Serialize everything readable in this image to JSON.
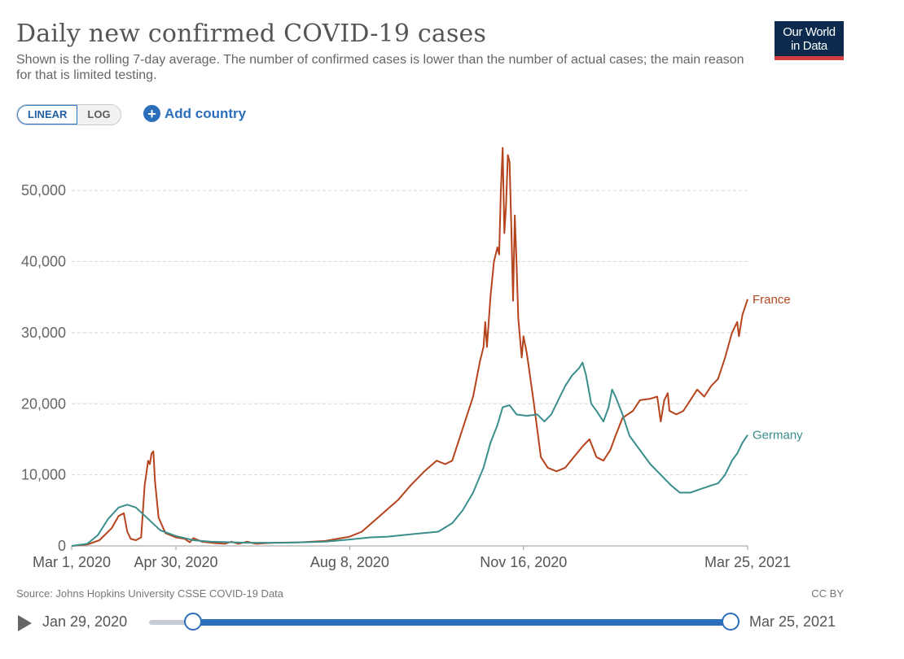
{
  "header": {
    "title": "Daily new confirmed COVID-19 cases",
    "subtitle": "Shown is the rolling 7-day average. The number of confirmed cases is lower than the number of actual cases; the main reason for that is limited testing.",
    "logo_line1": "Our World",
    "logo_line2": "in Data"
  },
  "controls": {
    "linear_label": "LINEAR",
    "log_label": "LOG",
    "add_country_label": "Add country"
  },
  "footer": {
    "source": "Source: Johns Hopkins University CSSE COVID-19 Data",
    "license": "CC BY"
  },
  "timeline": {
    "start_label": "Jan 29, 2020",
    "end_label": "Mar 25, 2021"
  },
  "colors": {
    "france": "#b5441d",
    "germany": "#3a8e8c",
    "accent": "#2a6ebc"
  },
  "chart_data": {
    "type": "line",
    "title": "Daily new confirmed COVID-19 cases",
    "x_range": [
      "2020-03-01",
      "2021-03-25"
    ],
    "x_tick_labels": [
      {
        "date": "2020-03-01",
        "label": "Mar 1, 2020"
      },
      {
        "date": "2020-04-30",
        "label": "Apr 30, 2020"
      },
      {
        "date": "2020-08-08",
        "label": "Aug 8, 2020"
      },
      {
        "date": "2020-11-16",
        "label": "Nov 16, 2020"
      },
      {
        "date": "2021-03-25",
        "label": "Mar 25, 2021"
      }
    ],
    "ylim": [
      0,
      56000
    ],
    "y_ticks": [
      {
        "value": 0,
        "label": "0"
      },
      {
        "value": 10000,
        "label": "10,000"
      },
      {
        "value": 20000,
        "label": "20,000"
      },
      {
        "value": 30000,
        "label": "30,000"
      },
      {
        "value": 40000,
        "label": "40,000"
      },
      {
        "value": 50000,
        "label": "50,000"
      }
    ],
    "grid": "horizontal-dashed",
    "legend": "line-end-labels",
    "series": [
      {
        "name": "France",
        "points": [
          [
            "2020-03-01",
            0
          ],
          [
            "2020-03-10",
            200
          ],
          [
            "2020-03-17",
            800
          ],
          [
            "2020-03-24",
            2500
          ],
          [
            "2020-03-28",
            4200
          ],
          [
            "2020-03-31",
            4600
          ],
          [
            "2020-04-02",
            2000
          ],
          [
            "2020-04-04",
            1000
          ],
          [
            "2020-04-07",
            800
          ],
          [
            "2020-04-10",
            1200
          ],
          [
            "2020-04-12",
            8500
          ],
          [
            "2020-04-14",
            12000
          ],
          [
            "2020-04-15",
            11500
          ],
          [
            "2020-04-16",
            13000
          ],
          [
            "2020-04-17",
            13300
          ],
          [
            "2020-04-18",
            9000
          ],
          [
            "2020-04-20",
            4000
          ],
          [
            "2020-04-24",
            1800
          ],
          [
            "2020-04-30",
            1200
          ],
          [
            "2020-05-05",
            1000
          ],
          [
            "2020-05-08",
            500
          ],
          [
            "2020-05-10",
            1100
          ],
          [
            "2020-05-15",
            600
          ],
          [
            "2020-05-22",
            400
          ],
          [
            "2020-05-28",
            300
          ],
          [
            "2020-06-01",
            600
          ],
          [
            "2020-06-05",
            300
          ],
          [
            "2020-06-10",
            600
          ],
          [
            "2020-06-15",
            300
          ],
          [
            "2020-06-25",
            450
          ],
          [
            "2020-07-10",
            500
          ],
          [
            "2020-07-25",
            700
          ],
          [
            "2020-08-08",
            1300
          ],
          [
            "2020-08-15",
            2000
          ],
          [
            "2020-08-22",
            3500
          ],
          [
            "2020-08-29",
            5000
          ],
          [
            "2020-09-05",
            6500
          ],
          [
            "2020-09-12",
            8500
          ],
          [
            "2020-09-20",
            10500
          ],
          [
            "2020-09-27",
            12000
          ],
          [
            "2020-10-02",
            11500
          ],
          [
            "2020-10-06",
            12000
          ],
          [
            "2020-10-12",
            16500
          ],
          [
            "2020-10-18",
            21000
          ],
          [
            "2020-10-22",
            26000
          ],
          [
            "2020-10-24",
            28000
          ],
          [
            "2020-10-25",
            31500
          ],
          [
            "2020-10-26",
            28000
          ],
          [
            "2020-10-28",
            35000
          ],
          [
            "2020-10-30",
            40000
          ],
          [
            "2020-11-01",
            42000
          ],
          [
            "2020-11-02",
            41000
          ],
          [
            "2020-11-03",
            50000
          ],
          [
            "2020-11-04",
            56000
          ],
          [
            "2020-11-05",
            44000
          ],
          [
            "2020-11-06",
            48000
          ],
          [
            "2020-11-07",
            55000
          ],
          [
            "2020-11-08",
            54000
          ],
          [
            "2020-11-09",
            45000
          ],
          [
            "2020-11-10",
            34500
          ],
          [
            "2020-11-11",
            46500
          ],
          [
            "2020-11-12",
            40000
          ],
          [
            "2020-11-13",
            32000
          ],
          [
            "2020-11-15",
            26500
          ],
          [
            "2020-11-16",
            29500
          ],
          [
            "2020-11-18",
            27000
          ],
          [
            "2020-11-22",
            20000
          ],
          [
            "2020-11-26",
            12500
          ],
          [
            "2020-11-30",
            11000
          ],
          [
            "2020-12-05",
            10500
          ],
          [
            "2020-12-10",
            11000
          ],
          [
            "2020-12-15",
            12500
          ],
          [
            "2020-12-20",
            14000
          ],
          [
            "2020-12-24",
            15000
          ],
          [
            "2020-12-28",
            12500
          ],
          [
            "2021-01-01",
            12000
          ],
          [
            "2021-01-05",
            13500
          ],
          [
            "2021-01-08",
            15500
          ],
          [
            "2021-01-12",
            18000
          ],
          [
            "2021-01-18",
            19000
          ],
          [
            "2021-01-22",
            20500
          ],
          [
            "2021-01-28",
            20700
          ],
          [
            "2021-02-01",
            21000
          ],
          [
            "2021-02-03",
            17500
          ],
          [
            "2021-02-05",
            20500
          ],
          [
            "2021-02-07",
            21500
          ],
          [
            "2021-02-08",
            19000
          ],
          [
            "2021-02-12",
            18500
          ],
          [
            "2021-02-16",
            19000
          ],
          [
            "2021-02-20",
            20500
          ],
          [
            "2021-02-24",
            22000
          ],
          [
            "2021-02-28",
            21000
          ],
          [
            "2021-03-04",
            22500
          ],
          [
            "2021-03-08",
            23500
          ],
          [
            "2021-03-12",
            26500
          ],
          [
            "2021-03-16",
            30000
          ],
          [
            "2021-03-19",
            31500
          ],
          [
            "2021-03-20",
            29500
          ],
          [
            "2021-03-22",
            32500
          ],
          [
            "2021-03-25",
            34700
          ]
        ]
      },
      {
        "name": "Germany",
        "points": [
          [
            "2020-03-01",
            0
          ],
          [
            "2020-03-10",
            300
          ],
          [
            "2020-03-16",
            1500
          ],
          [
            "2020-03-22",
            3800
          ],
          [
            "2020-03-28",
            5400
          ],
          [
            "2020-04-02",
            5800
          ],
          [
            "2020-04-07",
            5400
          ],
          [
            "2020-04-14",
            3800
          ],
          [
            "2020-04-21",
            2200
          ],
          [
            "2020-04-30",
            1400
          ],
          [
            "2020-05-10",
            800
          ],
          [
            "2020-05-20",
            600
          ],
          [
            "2020-06-10",
            450
          ],
          [
            "2020-07-01",
            450
          ],
          [
            "2020-07-25",
            600
          ],
          [
            "2020-08-08",
            900
          ],
          [
            "2020-08-20",
            1200
          ],
          [
            "2020-08-30",
            1300
          ],
          [
            "2020-09-15",
            1700
          ],
          [
            "2020-09-28",
            2000
          ],
          [
            "2020-10-06",
            3200
          ],
          [
            "2020-10-12",
            5000
          ],
          [
            "2020-10-18",
            7500
          ],
          [
            "2020-10-24",
            11000
          ],
          [
            "2020-10-28",
            14500
          ],
          [
            "2020-11-01",
            17000
          ],
          [
            "2020-11-04",
            19500
          ],
          [
            "2020-11-08",
            19800
          ],
          [
            "2020-11-12",
            18500
          ],
          [
            "2020-11-18",
            18300
          ],
          [
            "2020-11-24",
            18500
          ],
          [
            "2020-11-28",
            17500
          ],
          [
            "2020-12-02",
            18500
          ],
          [
            "2020-12-06",
            20500
          ],
          [
            "2020-12-10",
            22500
          ],
          [
            "2020-12-14",
            24000
          ],
          [
            "2020-12-18",
            25000
          ],
          [
            "2020-12-20",
            25800
          ],
          [
            "2020-12-22",
            24000
          ],
          [
            "2020-12-25",
            20000
          ],
          [
            "2020-12-28",
            19000
          ],
          [
            "2021-01-01",
            17500
          ],
          [
            "2021-01-04",
            19500
          ],
          [
            "2021-01-06",
            22000
          ],
          [
            "2021-01-08",
            21000
          ],
          [
            "2021-01-12",
            18500
          ],
          [
            "2021-01-16",
            15500
          ],
          [
            "2021-01-22",
            13500
          ],
          [
            "2021-01-28",
            11500
          ],
          [
            "2021-02-03",
            10000
          ],
          [
            "2021-02-09",
            8500
          ],
          [
            "2021-02-14",
            7500
          ],
          [
            "2021-02-20",
            7500
          ],
          [
            "2021-02-26",
            8000
          ],
          [
            "2021-03-04",
            8500
          ],
          [
            "2021-03-08",
            8800
          ],
          [
            "2021-03-12",
            10000
          ],
          [
            "2021-03-16",
            12000
          ],
          [
            "2021-03-19",
            13000
          ],
          [
            "2021-03-22",
            14500
          ],
          [
            "2021-03-25",
            15600
          ]
        ]
      }
    ]
  }
}
